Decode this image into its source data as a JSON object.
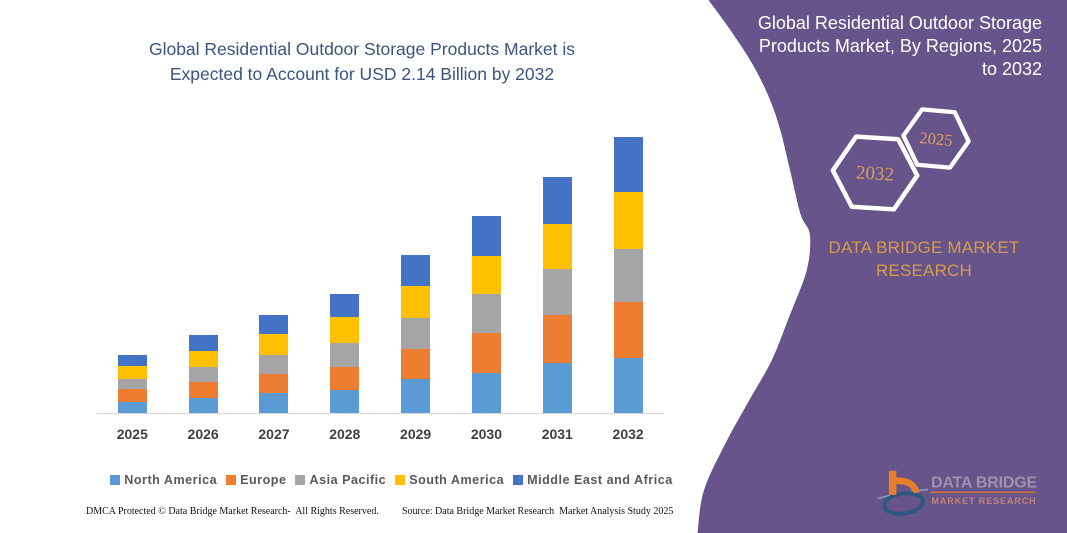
{
  "left_panel": {
    "title_lines": [
      "Global Residential Outdoor Storage Products Market is",
      "Expected to Account for USD 2.14 Billion by 2032"
    ],
    "footer_left": "DMCA Protected © Data Bridge Market Research-  All Rights Reserved.",
    "footer_right": "Source: Data Bridge Market Research  Market Analysis Study 2025"
  },
  "right_panel": {
    "heading_lines": [
      "Global Residential Outdoor Storage",
      "Products Market, By Regions, 2025",
      "to 2032"
    ],
    "hexagon_large_year": "2032",
    "hexagon_small_year": "2025",
    "brand_lines": [
      "DATA BRIDGE MARKET",
      "RESEARCH"
    ],
    "logo": {
      "name": "DATA BRIDGE",
      "tagline": "MARKET RESEARCH"
    }
  },
  "chart_data": {
    "type": "bar",
    "stacked": true,
    "title": "Global Residential Outdoor Storage Products Market is Expected to Account for USD 2.14 Billion by 2032",
    "unit": "USD Billion",
    "categories": [
      "2025",
      "2026",
      "2027",
      "2028",
      "2029",
      "2030",
      "2031",
      "2032"
    ],
    "series": [
      {
        "name": "North America",
        "color": "#5B9BD5",
        "values": [
          0.09,
          0.12,
          0.156,
          0.182,
          0.266,
          0.31,
          0.388,
          0.431
        ]
      },
      {
        "name": "Europe",
        "color": "#ED7D31",
        "values": [
          0.097,
          0.124,
          0.15,
          0.177,
          0.232,
          0.31,
          0.373,
          0.436
        ]
      },
      {
        "name": "Asia Pacific",
        "color": "#A5A5A5",
        "values": [
          0.084,
          0.119,
          0.146,
          0.187,
          0.242,
          0.305,
          0.361,
          0.41
        ]
      },
      {
        "name": "South America",
        "color": "#FFC000",
        "values": [
          0.096,
          0.123,
          0.162,
          0.198,
          0.245,
          0.297,
          0.347,
          0.436
        ]
      },
      {
        "name": "Middle East and Africa",
        "color": "#4472C4",
        "values": [
          0.088,
          0.119,
          0.149,
          0.184,
          0.242,
          0.311,
          0.366,
          0.427
        ]
      }
    ],
    "totals": [
      0.454,
      0.604,
      0.763,
      0.927,
      1.228,
      1.532,
      1.835,
      2.14
    ],
    "legend_position": "bottom",
    "gridlines": false,
    "y_axis_labels": false
  },
  "colors": {
    "title_text": "#3B5480",
    "category_text": "#404040",
    "legend_text": "#595959",
    "panel_purple": "#66548A",
    "panel_text": "#FFFFFF",
    "accent_gold": "#D89B4B",
    "hexagon_year_text": "#D9A15C",
    "axis_line": "#D9D9D9",
    "logo_orange": "#E87E2B",
    "logo_navy": "#2D5A87"
  }
}
